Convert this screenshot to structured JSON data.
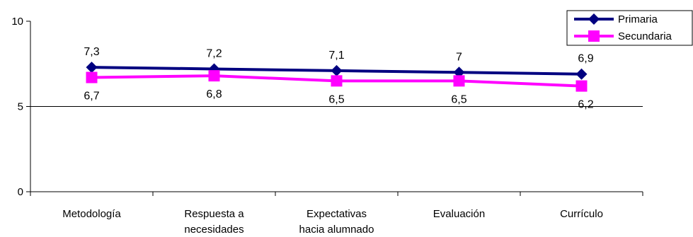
{
  "chart_data": {
    "type": "line",
    "categories": [
      [
        "Metodología"
      ],
      [
        "Respuesta a",
        "necesidades"
      ],
      [
        "Expectativas",
        "hacia alumnado"
      ],
      [
        "Evaluación"
      ],
      [
        "Currículo"
      ]
    ],
    "series": [
      {
        "name": "Primaria",
        "values": [
          7.3,
          7.2,
          7.1,
          7,
          6.9
        ],
        "labels": [
          "7,3",
          "7,2",
          "7,1",
          "7",
          "6,9"
        ],
        "color": "#000080",
        "marker": "diamond"
      },
      {
        "name": "Secundaria",
        "values": [
          6.7,
          6.8,
          6.5,
          6.5,
          6.2
        ],
        "labels": [
          "6,7",
          "6,8",
          "6,5",
          "6,5",
          "6,2"
        ],
        "color": "#FF00FF",
        "marker": "square"
      }
    ],
    "yticks": [
      {
        "value": 0,
        "label": "0"
      },
      {
        "value": 5,
        "label": "5"
      },
      {
        "value": 10,
        "label": "10"
      }
    ],
    "ylim": [
      0,
      10
    ],
    "gridlines": [
      5
    ],
    "legend": "top-right",
    "title": "",
    "xlabel": "",
    "ylabel": ""
  }
}
